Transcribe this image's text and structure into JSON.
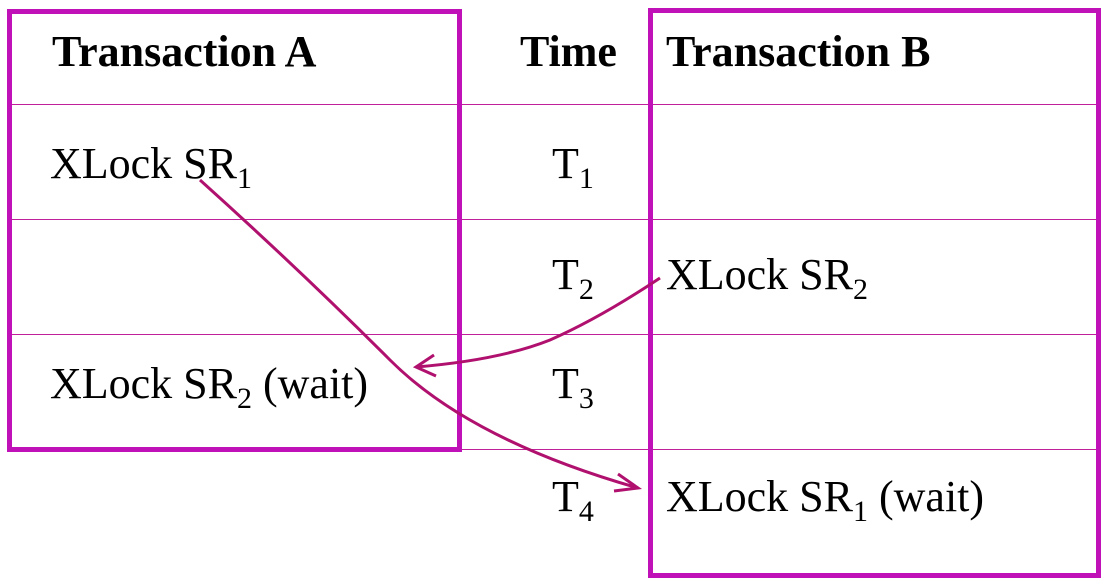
{
  "colors": {
    "border": "#c010b8",
    "rowline": "#c0209a",
    "arrow": "#b0106e"
  },
  "headers": {
    "a": "Transaction A",
    "time": "Time",
    "b": "Transaction B"
  },
  "rows": [
    {
      "time": {
        "main": "T",
        "sub": "1"
      },
      "a": {
        "main": "XLock SR",
        "sub": "1",
        "suffix": ""
      },
      "b": {
        "main": "",
        "sub": "",
        "suffix": ""
      }
    },
    {
      "time": {
        "main": "T",
        "sub": "2"
      },
      "a": {
        "main": "",
        "sub": "",
        "suffix": ""
      },
      "b": {
        "main": "XLock SR",
        "sub": "2",
        "suffix": ""
      }
    },
    {
      "time": {
        "main": "T",
        "sub": "3"
      },
      "a": {
        "main": "XLock SR",
        "sub": "2",
        "suffix": " (wait)"
      },
      "b": {
        "main": "",
        "sub": "",
        "suffix": ""
      }
    },
    {
      "time": {
        "main": "T",
        "sub": "4"
      },
      "a": {
        "main": "",
        "sub": "",
        "suffix": ""
      },
      "b": {
        "main": "XLock SR",
        "sub": "1",
        "suffix": " (wait)"
      }
    }
  ]
}
